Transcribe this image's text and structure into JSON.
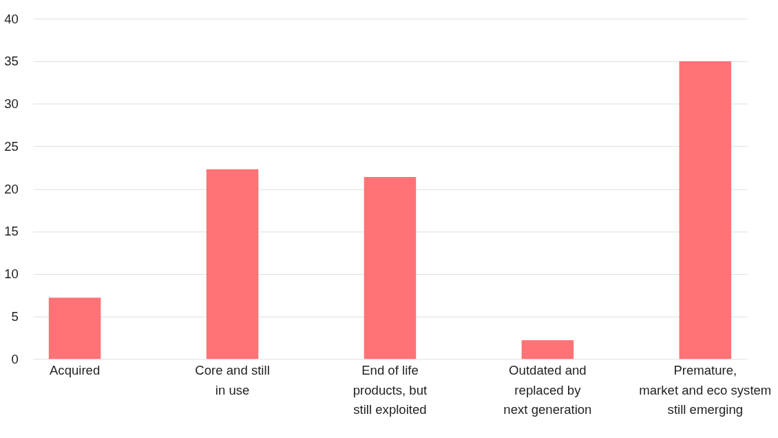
{
  "chart_data": {
    "type": "bar",
    "categories": [
      "Acquired",
      "Core and still\nin use",
      "End of life\nproducts, but\nstill exploited",
      "Outdated and\nreplaced by\nnext generation",
      "Premature,\nmarket and eco system\nstill emerging"
    ],
    "values": [
      7.2,
      22.3,
      21.4,
      2.2,
      35
    ],
    "color": "#ff7276",
    "ylim": [
      0,
      40
    ],
    "yticks": [
      0,
      5,
      10,
      15,
      20,
      25,
      30,
      35,
      40
    ],
    "grid": "y"
  }
}
